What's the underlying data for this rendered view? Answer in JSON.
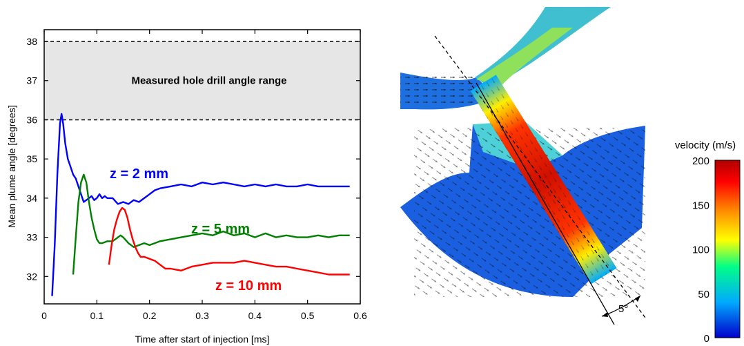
{
  "chart_data": {
    "type": "line",
    "title": "",
    "xlabel": "Time after start of injection [ms]",
    "ylabel": "Mean plume angle [degrees]",
    "xlim": [
      0,
      0.6
    ],
    "ylim": [
      31.3,
      38.3
    ],
    "xticks": [
      "0",
      "0.1",
      "0.2",
      "0.3",
      "0.4",
      "0.5",
      "0.6"
    ],
    "yticks": [
      "32",
      "33",
      "34",
      "35",
      "36",
      "37",
      "38"
    ],
    "band": {
      "label": "Measured hole drill angle range",
      "low": 36,
      "high": 38,
      "color": "#e6e6e6"
    },
    "series": [
      {
        "name": "z = 2 mm",
        "color": "#0000ff",
        "x": [
          0.015,
          0.02,
          0.025,
          0.03,
          0.033,
          0.036,
          0.04,
          0.045,
          0.05,
          0.055,
          0.06,
          0.065,
          0.07,
          0.075,
          0.08,
          0.085,
          0.09,
          0.095,
          0.1,
          0.105,
          0.11,
          0.115,
          0.12,
          0.13,
          0.14,
          0.15,
          0.16,
          0.17,
          0.18,
          0.19,
          0.2,
          0.21,
          0.22,
          0.24,
          0.26,
          0.28,
          0.3,
          0.32,
          0.34,
          0.36,
          0.38,
          0.4,
          0.42,
          0.44,
          0.46,
          0.48,
          0.5,
          0.52,
          0.54,
          0.56,
          0.58
        ],
        "y": [
          31.5,
          32.8,
          34.6,
          35.9,
          36.15,
          35.9,
          35.4,
          35.0,
          34.8,
          34.6,
          34.5,
          34.3,
          34.1,
          33.9,
          33.95,
          34.0,
          34.05,
          33.95,
          34.0,
          34.1,
          34.0,
          34.05,
          34.0,
          34.0,
          33.85,
          33.9,
          33.85,
          33.95,
          33.9,
          34.0,
          34.1,
          34.2,
          34.25,
          34.3,
          34.35,
          34.3,
          34.4,
          34.35,
          34.4,
          34.35,
          34.3,
          34.35,
          34.3,
          34.35,
          34.3,
          34.3,
          34.35,
          34.3,
          34.3,
          34.3,
          34.3
        ]
      },
      {
        "name": "z = 5 mm",
        "color": "#008000",
        "x": [
          0.055,
          0.06,
          0.065,
          0.07,
          0.075,
          0.08,
          0.085,
          0.09,
          0.095,
          0.1,
          0.105,
          0.11,
          0.12,
          0.13,
          0.14,
          0.145,
          0.15,
          0.16,
          0.17,
          0.18,
          0.19,
          0.2,
          0.21,
          0.22,
          0.24,
          0.26,
          0.28,
          0.3,
          0.32,
          0.34,
          0.36,
          0.38,
          0.4,
          0.42,
          0.44,
          0.46,
          0.48,
          0.5,
          0.52,
          0.54,
          0.56,
          0.58
        ],
        "y": [
          32.05,
          33.0,
          33.9,
          34.4,
          34.6,
          34.4,
          33.9,
          33.5,
          33.2,
          32.95,
          32.85,
          32.85,
          32.9,
          32.9,
          33.0,
          33.05,
          33.0,
          32.85,
          32.75,
          32.8,
          32.85,
          32.8,
          32.85,
          32.9,
          32.95,
          33.0,
          33.05,
          33.1,
          33.05,
          33.15,
          33.05,
          33.1,
          33.0,
          33.1,
          33.0,
          33.05,
          33.0,
          33.0,
          33.05,
          33.0,
          33.05,
          33.05
        ]
      },
      {
        "name": "z = 10 mm",
        "color": "#ff0000",
        "x": [
          0.123,
          0.128,
          0.133,
          0.138,
          0.143,
          0.148,
          0.153,
          0.158,
          0.163,
          0.168,
          0.173,
          0.178,
          0.183,
          0.19,
          0.2,
          0.21,
          0.22,
          0.23,
          0.24,
          0.26,
          0.28,
          0.3,
          0.32,
          0.34,
          0.36,
          0.38,
          0.4,
          0.42,
          0.44,
          0.46,
          0.48,
          0.5,
          0.52,
          0.54,
          0.56,
          0.58
        ],
        "y": [
          32.3,
          32.8,
          33.2,
          33.45,
          33.65,
          33.75,
          33.7,
          33.5,
          33.2,
          32.95,
          32.75,
          32.6,
          32.5,
          32.5,
          32.45,
          32.4,
          32.3,
          32.2,
          32.2,
          32.15,
          32.25,
          32.3,
          32.35,
          32.35,
          32.35,
          32.4,
          32.35,
          32.3,
          32.25,
          32.25,
          32.2,
          32.15,
          32.1,
          32.05,
          32.05,
          32.05
        ]
      }
    ]
  },
  "annotations": {
    "z2": "z = 2 mm",
    "z5": "z = 5 mm",
    "z10": "z = 10 mm",
    "band_label": "Measured hole drill angle range"
  },
  "cfd": {
    "angle_label": "5°",
    "colorbar": {
      "title": "velocity (m/s)",
      "ticks": [
        "200",
        "150",
        "100",
        "50",
        "0"
      ],
      "min": 0,
      "max": 200,
      "colors": [
        "#0000cc",
        "#00aaff",
        "#00ff88",
        "#ffff00",
        "#ff8800",
        "#ff0000",
        "#b00000"
      ]
    }
  }
}
